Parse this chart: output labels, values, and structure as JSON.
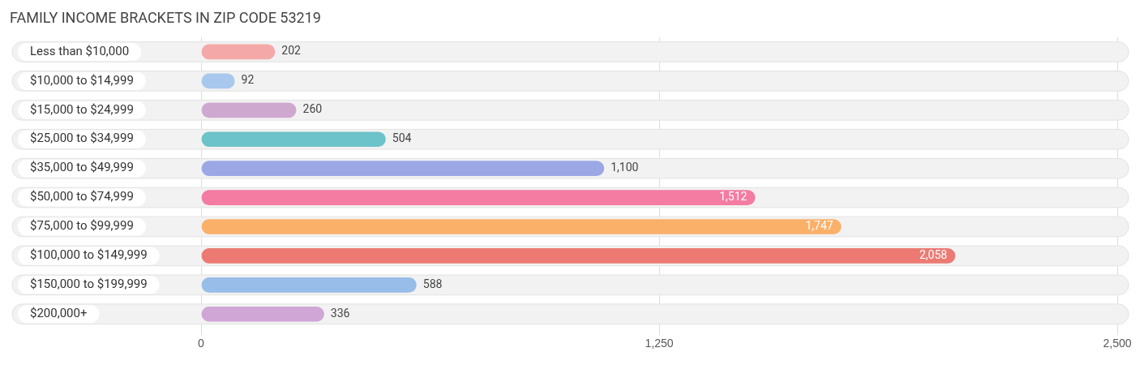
{
  "chart_data": {
    "type": "bar",
    "orientation": "horizontal",
    "title": "FAMILY INCOME BRACKETS IN ZIP CODE 53219",
    "categories": [
      "Less than $10,000",
      "$10,000 to $14,999",
      "$15,000 to $24,999",
      "$25,000 to $34,999",
      "$35,000 to $49,999",
      "$50,000 to $74,999",
      "$75,000 to $99,999",
      "$100,000 to $149,999",
      "$150,000 to $199,999",
      "$200,000+"
    ],
    "values": [
      202,
      92,
      260,
      504,
      1100,
      1512,
      1747,
      2058,
      588,
      336
    ],
    "colors": [
      "#f4a9a8",
      "#a9c8ee",
      "#cfa8d0",
      "#6cc3c9",
      "#9ca8e6",
      "#f47ba1",
      "#fbb06a",
      "#ec7a73",
      "#98bde8",
      "#cfa6d6"
    ],
    "value_labels": [
      "202",
      "92",
      "260",
      "504",
      "1,100",
      "1,512",
      "1,747",
      "2,058",
      "588",
      "336"
    ],
    "xlim": [
      0,
      2500
    ],
    "xticks": [
      0,
      {
        "value": 1250,
        "label": "1,250"
      },
      {
        "value": 2500,
        "label": "2,500"
      }
    ],
    "grid": "x"
  }
}
